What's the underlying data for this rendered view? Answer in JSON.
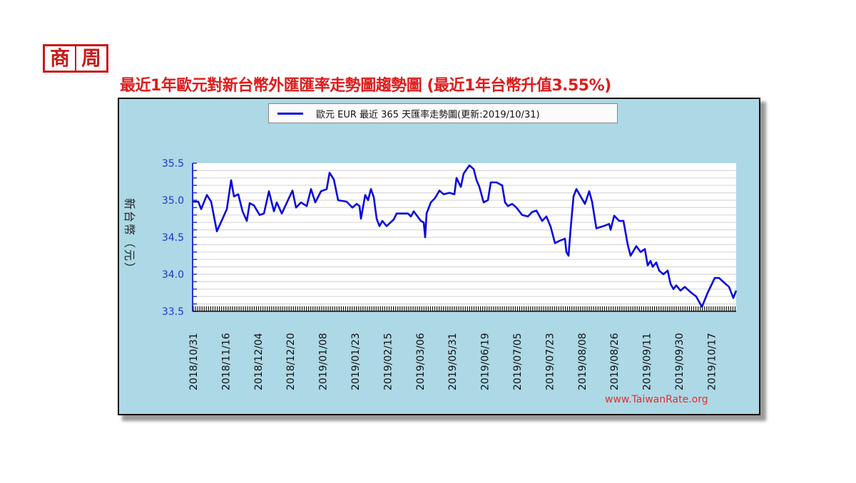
{
  "logo": {
    "chars": [
      "商",
      "周"
    ],
    "color": "#c81a1a"
  },
  "headline": "最近1年歐元對新台幣外匯匯率走勢圖趨勢圖 (最近1年台幣升值3.55%)",
  "legend": {
    "label": "歐元 EUR 最近 365 天匯率走勢圖(更新:2019/10/31)",
    "color": "#0a0adc"
  },
  "watermark": "www.TaiwanRate.org",
  "colors": {
    "frame_bg": "#add8e6",
    "plot_bg": "#ffffff",
    "line": "#0a0adc",
    "axis_text": "#2233cc",
    "headline": "#e01b1b"
  },
  "chart_data": {
    "type": "line",
    "title": "歐元 EUR 最近 365 天匯率走勢圖(更新:2019/10/31)",
    "xlabel": "",
    "ylabel": "新台幣（元）",
    "ylim": [
      33.5,
      35.5
    ],
    "yticks": [
      "35.5",
      "35.0",
      "34.5",
      "34.0",
      "33.5"
    ],
    "xticks": [
      "2018/10/31",
      "2018/11/16",
      "2018/12/04",
      "2018/12/20",
      "2019/01/08",
      "2019/01/23",
      "2019/02/15",
      "2019/03/06",
      "2019/05/31",
      "2019/06/19",
      "2019/07/05",
      "2019/07/23",
      "2019/08/08",
      "2019/08/26",
      "2019/09/11",
      "2019/09/30",
      "2019/10/17"
    ],
    "grid": true,
    "legend_position": "top",
    "series": [
      {
        "name": "歐元 EUR",
        "points": [
          [
            0,
            34.98
          ],
          [
            8,
            34.98
          ],
          [
            12,
            34.88
          ],
          [
            20,
            35.07
          ],
          [
            26,
            34.98
          ],
          [
            34,
            34.58
          ],
          [
            42,
            34.75
          ],
          [
            48,
            34.88
          ],
          [
            54,
            35.27
          ],
          [
            58,
            35.05
          ],
          [
            64,
            35.08
          ],
          [
            70,
            34.85
          ],
          [
            76,
            34.72
          ],
          [
            80,
            34.96
          ],
          [
            86,
            34.93
          ],
          [
            94,
            34.8
          ],
          [
            100,
            34.82
          ],
          [
            107,
            35.12
          ],
          [
            114,
            34.85
          ],
          [
            118,
            34.97
          ],
          [
            125,
            34.82
          ],
          [
            140,
            35.13
          ],
          [
            145,
            34.9
          ],
          [
            152,
            34.97
          ],
          [
            160,
            34.92
          ],
          [
            166,
            35.15
          ],
          [
            172,
            34.97
          ],
          [
            180,
            35.12
          ],
          [
            188,
            35.15
          ],
          [
            192,
            35.37
          ],
          [
            198,
            35.28
          ],
          [
            204,
            35.0
          ],
          [
            216,
            34.98
          ],
          [
            224,
            34.9
          ],
          [
            230,
            34.95
          ],
          [
            234,
            34.92
          ],
          [
            236,
            34.75
          ],
          [
            242,
            35.07
          ],
          [
            246,
            35.0
          ],
          [
            250,
            35.15
          ],
          [
            254,
            35.04
          ],
          [
            258,
            34.75
          ],
          [
            262,
            34.65
          ],
          [
            266,
            34.72
          ],
          [
            272,
            34.65
          ],
          [
            282,
            34.74
          ],
          [
            286,
            34.82
          ],
          [
            302,
            34.82
          ],
          [
            306,
            34.78
          ],
          [
            310,
            34.85
          ],
          [
            320,
            34.72
          ],
          [
            324,
            34.7
          ],
          [
            326,
            34.5
          ],
          [
            328,
            34.82
          ],
          [
            334,
            34.97
          ],
          [
            340,
            35.03
          ],
          [
            346,
            35.13
          ],
          [
            352,
            35.08
          ],
          [
            360,
            35.1
          ],
          [
            367,
            35.08
          ],
          [
            370,
            35.3
          ],
          [
            376,
            35.18
          ],
          [
            380,
            35.36
          ],
          [
            388,
            35.47
          ],
          [
            394,
            35.42
          ],
          [
            398,
            35.27
          ],
          [
            402,
            35.18
          ],
          [
            408,
            34.97
          ],
          [
            414,
            35.0
          ],
          [
            418,
            35.24
          ],
          [
            426,
            35.24
          ],
          [
            434,
            35.2
          ],
          [
            438,
            34.97
          ],
          [
            442,
            34.92
          ],
          [
            448,
            34.95
          ],
          [
            454,
            34.9
          ],
          [
            462,
            34.8
          ],
          [
            470,
            34.78
          ],
          [
            476,
            34.84
          ],
          [
            482,
            34.86
          ],
          [
            490,
            34.72
          ],
          [
            496,
            34.78
          ],
          [
            502,
            34.64
          ],
          [
            508,
            34.42
          ],
          [
            514,
            34.45
          ],
          [
            522,
            34.48
          ],
          [
            524,
            34.3
          ],
          [
            527,
            34.25
          ],
          [
            530,
            34.62
          ],
          [
            534,
            35.05
          ],
          [
            538,
            35.15
          ],
          [
            544,
            35.05
          ],
          [
            550,
            34.95
          ],
          [
            556,
            35.12
          ],
          [
            560,
            34.98
          ],
          [
            566,
            34.62
          ],
          [
            576,
            34.65
          ],
          [
            584,
            34.68
          ],
          [
            586,
            34.6
          ],
          [
            591,
            34.79
          ],
          [
            598,
            34.72
          ],
          [
            604,
            34.72
          ],
          [
            610,
            34.4
          ],
          [
            614,
            34.25
          ],
          [
            622,
            34.38
          ],
          [
            628,
            34.3
          ],
          [
            634,
            34.34
          ],
          [
            638,
            34.12
          ],
          [
            642,
            34.18
          ],
          [
            645,
            34.1
          ],
          [
            650,
            34.16
          ],
          [
            654,
            34.05
          ],
          [
            660,
            34.0
          ],
          [
            666,
            34.05
          ],
          [
            670,
            33.87
          ],
          [
            674,
            33.8
          ],
          [
            678,
            33.85
          ],
          [
            684,
            33.78
          ],
          [
            690,
            33.83
          ],
          [
            698,
            33.76
          ],
          [
            706,
            33.7
          ],
          [
            714,
            33.56
          ],
          [
            722,
            33.75
          ],
          [
            732,
            33.95
          ],
          [
            738,
            33.95
          ],
          [
            746,
            33.88
          ],
          [
            752,
            33.83
          ],
          [
            758,
            33.68
          ],
          [
            762,
            33.78
          ]
        ]
      }
    ]
  }
}
